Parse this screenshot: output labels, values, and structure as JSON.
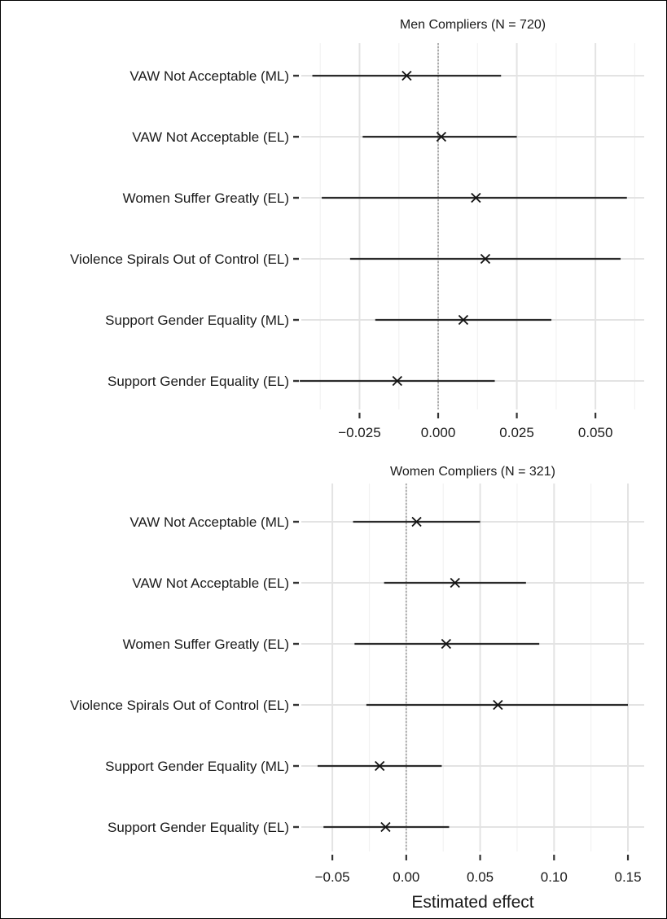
{
  "chart_data": [
    {
      "type": "forest",
      "title": "Men Compliers (N = 720)",
      "xlabel": "",
      "xlim": [
        -0.0435,
        0.0655
      ],
      "xticks": [
        -0.025,
        0.0,
        0.025,
        0.05
      ],
      "xtick_labels": [
        "−0.025",
        "0.000",
        "0.025",
        "0.050"
      ],
      "reference_line": 0,
      "grid": true,
      "categories": [
        "VAW Not Acceptable (ML)",
        "VAW Not Acceptable (EL)",
        "Women Suffer Greatly (EL)",
        "Violence Spirals Out of Control (EL)",
        "Support Gender Equality (ML)",
        "Support Gender Equality (EL)"
      ],
      "estimate": [
        -0.01,
        0.001,
        0.012,
        0.015,
        0.008,
        -0.013
      ],
      "ci_low": [
        -0.04,
        -0.024,
        -0.037,
        -0.028,
        -0.02,
        -0.044
      ],
      "ci_high": [
        0.02,
        0.025,
        0.06,
        0.058,
        0.036,
        0.018
      ],
      "marker": "x"
    },
    {
      "type": "forest",
      "title": "Women Compliers (N = 321)",
      "xlabel": "Estimated effect",
      "xlim": [
        -0.071,
        0.161
      ],
      "xticks": [
        -0.05,
        0.0,
        0.05,
        0.1,
        0.15
      ],
      "xtick_labels": [
        "−0.05",
        "0.00",
        "0.05",
        "0.10",
        "0.15"
      ],
      "reference_line": 0,
      "grid": true,
      "categories": [
        "VAW Not Acceptable (ML)",
        "VAW Not Acceptable (EL)",
        "Women Suffer Greatly (EL)",
        "Violence Spirals Out of Control (EL)",
        "Support Gender Equality (ML)",
        "Support Gender Equality (EL)"
      ],
      "estimate": [
        0.007,
        0.033,
        0.027,
        0.062,
        -0.018,
        -0.014
      ],
      "ci_low": [
        -0.036,
        -0.015,
        -0.035,
        -0.027,
        -0.06,
        -0.056
      ],
      "ci_high": [
        0.05,
        0.081,
        0.09,
        0.15,
        0.024,
        0.029
      ],
      "marker": "x"
    }
  ]
}
